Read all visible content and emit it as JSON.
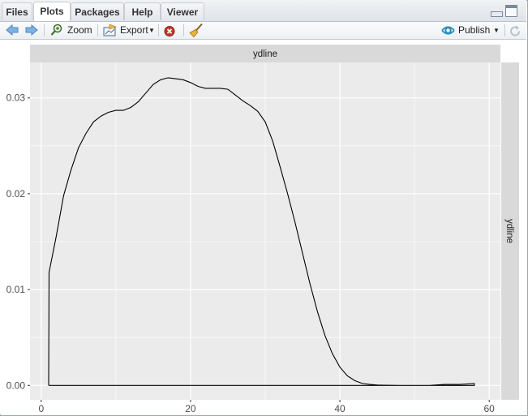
{
  "tabs": [
    {
      "label": "Files",
      "active": false
    },
    {
      "label": "Plots",
      "active": true
    },
    {
      "label": "Packages",
      "active": false
    },
    {
      "label": "Help",
      "active": false
    },
    {
      "label": "Viewer",
      "active": false
    }
  ],
  "toolbar": {
    "zoom_label": "Zoom",
    "export_label": "Export",
    "publish_label": "Publish",
    "icons": [
      "back-arrow-icon",
      "forward-arrow-icon",
      "zoom-icon",
      "export-icon",
      "remove-plot-icon",
      "broom-icon",
      "publish-icon",
      "refresh-icon"
    ]
  },
  "colors": {
    "panel_bg": "#EBEBEB",
    "strip_bg": "#D9D9D9",
    "grid": "#FFFFFF",
    "line": "#000000",
    "accent_publish": "#2a8fbd",
    "remove_red": "#c0392b"
  },
  "chart_data": {
    "type": "line",
    "facet_top_label": "ydline",
    "facet_right_label": "ydline",
    "x_ticks": [
      0,
      20,
      40,
      60
    ],
    "y_ticks": [
      0.0,
      0.01,
      0.02,
      0.03
    ],
    "y_tick_labels": [
      "0.00",
      "0.01",
      "0.02",
      "0.03"
    ],
    "x_tick_labels": [
      "0",
      "20",
      "40",
      "60"
    ],
    "xlim": [
      -1.5,
      61.5
    ],
    "ylim": [
      -0.0015,
      0.0337
    ],
    "grid": true,
    "series": [
      {
        "x": [
          1,
          1.05,
          2,
          3,
          4,
          5,
          6,
          7,
          8,
          9,
          10,
          11,
          12,
          13,
          14,
          15,
          16,
          17,
          18,
          19,
          20,
          21,
          22,
          23,
          24,
          25,
          26,
          27,
          28,
          29,
          30,
          31,
          32,
          33,
          34,
          35,
          36,
          37,
          38,
          39,
          40,
          41,
          42,
          43,
          44,
          45,
          46,
          48,
          50,
          52,
          54,
          56,
          58,
          58,
          1
        ],
        "y": [
          0,
          0.0118,
          0.0155,
          0.0198,
          0.0225,
          0.0248,
          0.0263,
          0.0275,
          0.0281,
          0.0285,
          0.0287,
          0.0287,
          0.029,
          0.0296,
          0.0305,
          0.0314,
          0.0319,
          0.0321,
          0.032,
          0.0319,
          0.0316,
          0.0312,
          0.031,
          0.031,
          0.031,
          0.0309,
          0.0303,
          0.0297,
          0.0292,
          0.0286,
          0.0275,
          0.0255,
          0.0228,
          0.02,
          0.017,
          0.0138,
          0.0106,
          0.0077,
          0.0052,
          0.0033,
          0.0019,
          0.001,
          0.0005,
          0.0002,
          0.0001,
          4e-05,
          2e-05,
          0.0,
          0.0,
          0.0,
          0.0001,
          0.0001,
          0.0002,
          0.0,
          0.0
        ]
      }
    ]
  }
}
